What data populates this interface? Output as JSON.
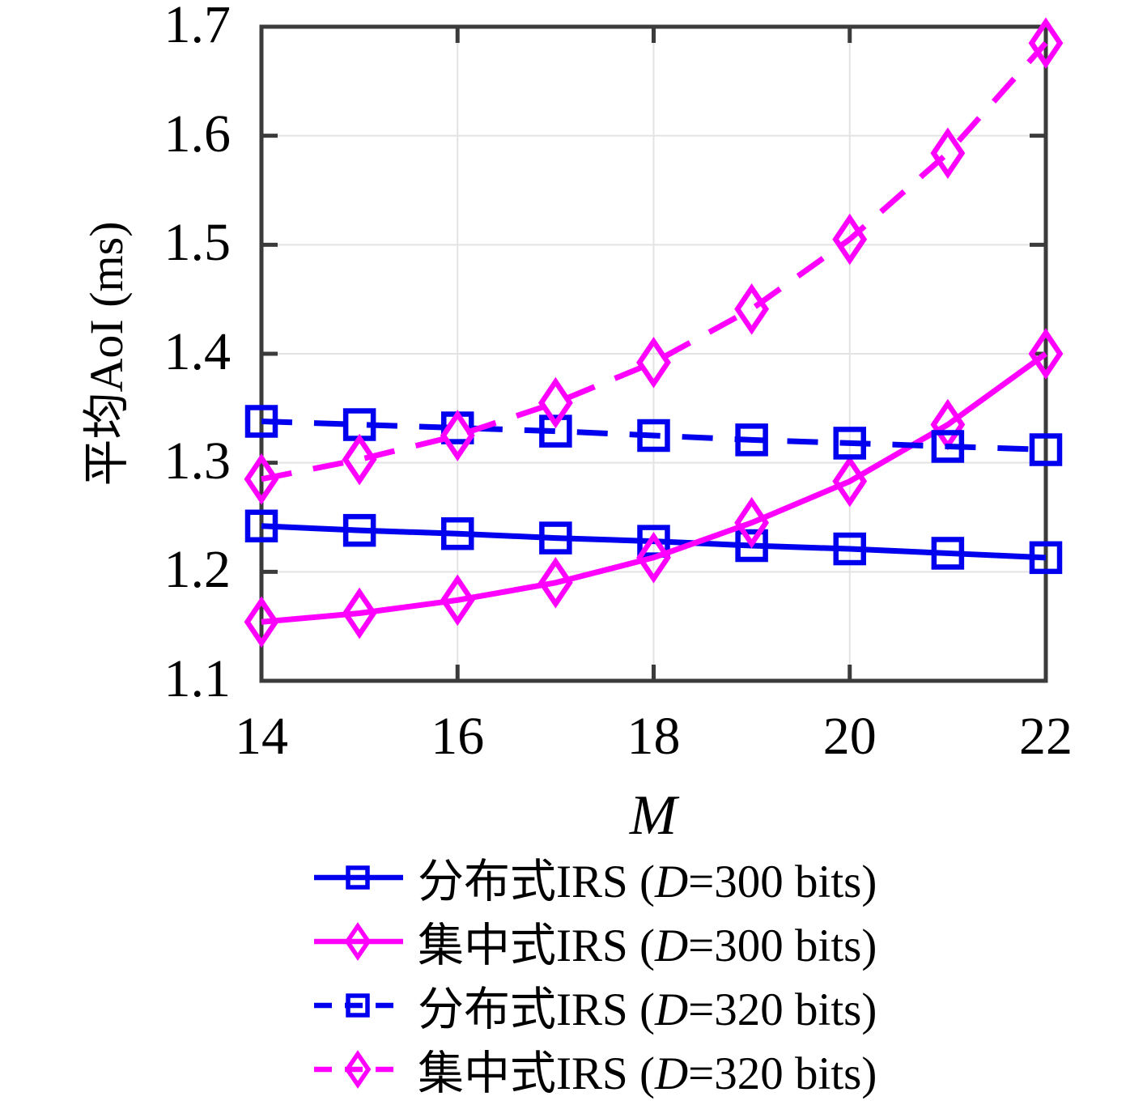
{
  "chart_data": {
    "type": "line",
    "title": "",
    "xlabel": "M",
    "ylabel": "平均AoI (ms)",
    "xlim": [
      14,
      22
    ],
    "ylim": [
      1.1,
      1.7
    ],
    "x_ticks": [
      14,
      16,
      18,
      20,
      22
    ],
    "y_ticks": [
      1.1,
      1.2,
      1.3,
      1.4,
      1.5,
      1.6,
      1.7
    ],
    "grid": true,
    "legend_position": "below-axis",
    "frame_color": "#3b3b3b",
    "grid_color": "#e3e3e3",
    "x": [
      14,
      15,
      16,
      17,
      18,
      19,
      20,
      21,
      22
    ],
    "series": [
      {
        "name": "分布式IRS (D=300 bits)",
        "label": {
          "prefix": "分布式IRS (",
          "var": "D",
          "suffix": "=300 bits)"
        },
        "color": "#0000ee",
        "line_style": "solid",
        "marker": "square",
        "values": [
          1.242,
          1.238,
          1.235,
          1.231,
          1.228,
          1.224,
          1.221,
          1.217,
          1.213
        ]
      },
      {
        "name": "集中式IRS (D=300 bits)",
        "label": {
          "prefix": "集中式IRS (",
          "var": "D",
          "suffix": "=300 bits)"
        },
        "color": "#ff00ff",
        "line_style": "solid",
        "marker": "diamond",
        "values": [
          1.154,
          1.162,
          1.174,
          1.19,
          1.213,
          1.245,
          1.283,
          1.335,
          1.4
        ]
      },
      {
        "name": "分布式IRS (D=320 bits)",
        "label": {
          "prefix": "分布式IRS (",
          "var": "D",
          "suffix": "=320 bits)"
        },
        "color": "#0000ee",
        "line_style": "dashed",
        "marker": "square",
        "values": [
          1.338,
          1.335,
          1.332,
          1.329,
          1.325,
          1.321,
          1.318,
          1.315,
          1.312
        ]
      },
      {
        "name": "集中式IRS (D=320 bits)",
        "label": {
          "prefix": "集中式IRS (",
          "var": "D",
          "suffix": "=320 bits)"
        },
        "color": "#ff00ff",
        "line_style": "dashed",
        "marker": "diamond",
        "values": [
          1.285,
          1.303,
          1.325,
          1.355,
          1.392,
          1.441,
          1.505,
          1.584,
          1.685
        ]
      }
    ]
  }
}
